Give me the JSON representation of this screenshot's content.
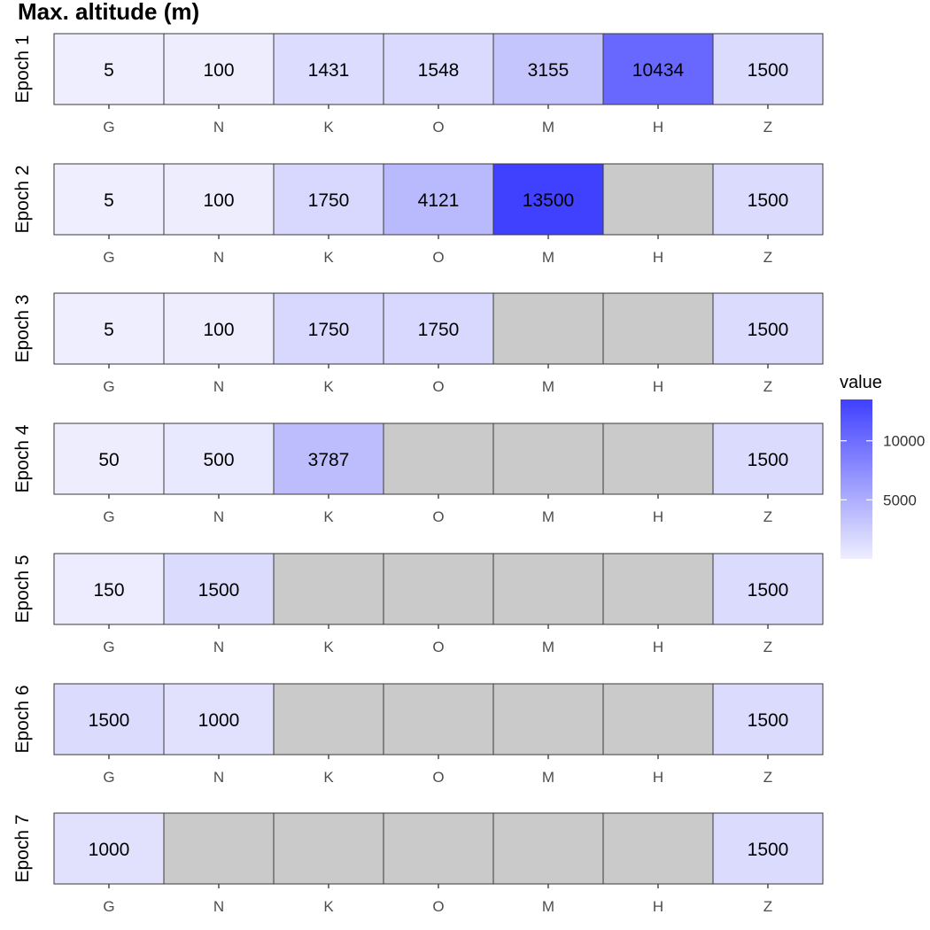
{
  "chart_data": {
    "type": "heatmap",
    "title": "Max. altitude (m)",
    "categories": [
      "G",
      "N",
      "K",
      "O",
      "M",
      "H",
      "Z"
    ],
    "rows": [
      {
        "label": "Epoch 1",
        "values": [
          5,
          100,
          1431,
          1548,
          3155,
          10434,
          1500
        ]
      },
      {
        "label": "Epoch 2",
        "values": [
          5,
          100,
          1750,
          4121,
          13500,
          null,
          1500
        ]
      },
      {
        "label": "Epoch 3",
        "values": [
          5,
          100,
          1750,
          1750,
          null,
          null,
          1500
        ]
      },
      {
        "label": "Epoch 4",
        "values": [
          50,
          500,
          3787,
          null,
          null,
          null,
          1500
        ]
      },
      {
        "label": "Epoch 5",
        "values": [
          150,
          1500,
          null,
          null,
          null,
          null,
          1500
        ]
      },
      {
        "label": "Epoch 6",
        "values": [
          1500,
          1000,
          null,
          null,
          null,
          null,
          1500
        ]
      },
      {
        "label": "Epoch 7",
        "values": [
          1000,
          null,
          null,
          null,
          null,
          null,
          1500
        ]
      }
    ],
    "legend": {
      "title": "value",
      "ticks": [
        5000,
        10000
      ],
      "min": 5,
      "max": 13500,
      "low_color": "#eeeefe",
      "high_color": "#4040ff"
    },
    "missing_color": "#cacaca"
  }
}
